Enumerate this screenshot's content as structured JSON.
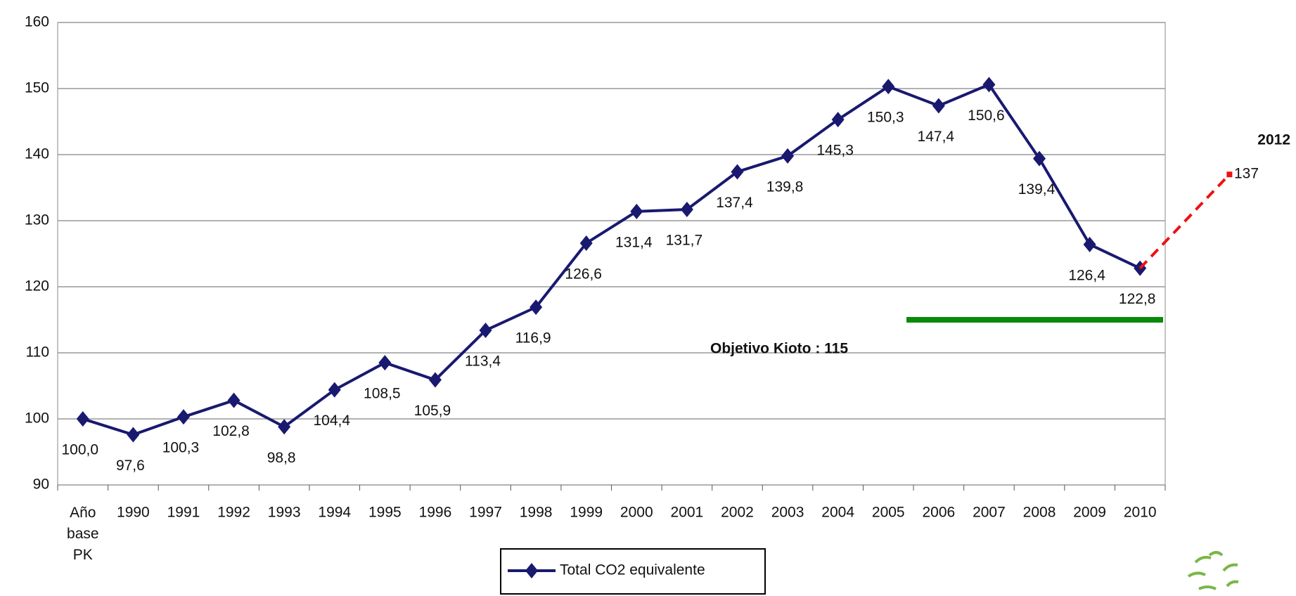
{
  "chart_data": {
    "type": "line",
    "categories": [
      "Año base PK",
      "1990",
      "1991",
      "1992",
      "1993",
      "1994",
      "1995",
      "1996",
      "1997",
      "1998",
      "1999",
      "2000",
      "2001",
      "2002",
      "2003",
      "2004",
      "2005",
      "2006",
      "2007",
      "2008",
      "2009",
      "2010"
    ],
    "series": [
      {
        "name": "Total CO2 equivalente",
        "color": "#191970",
        "values": [
          100.0,
          97.6,
          100.3,
          102.8,
          98.8,
          104.4,
          108.5,
          105.9,
          113.4,
          116.9,
          126.6,
          131.4,
          131.7,
          137.4,
          139.8,
          145.3,
          150.3,
          147.4,
          150.6,
          139.4,
          126.4,
          122.8
        ],
        "value_labels": [
          "100,0",
          "97,6",
          "100,3",
          "102,8",
          "98,8",
          "104,4",
          "108,5",
          "105,9",
          "113,4",
          "116,9",
          "126,6",
          "131,4",
          "131,7",
          "137,4",
          "139,8",
          "145,3",
          "150,3",
          "147,4",
          "150,6",
          "139,4",
          "126,4",
          "122,8"
        ]
      }
    ],
    "ylim": [
      90,
      160
    ],
    "yticks": [
      90,
      100,
      110,
      120,
      130,
      140,
      150,
      160
    ],
    "grid": true,
    "target": {
      "label": "Objetivo Kioto : 115",
      "value": 115,
      "color": "#0a8a0a"
    },
    "projection": {
      "label": "2012",
      "value": 137,
      "color": "#ee1111"
    }
  }
}
